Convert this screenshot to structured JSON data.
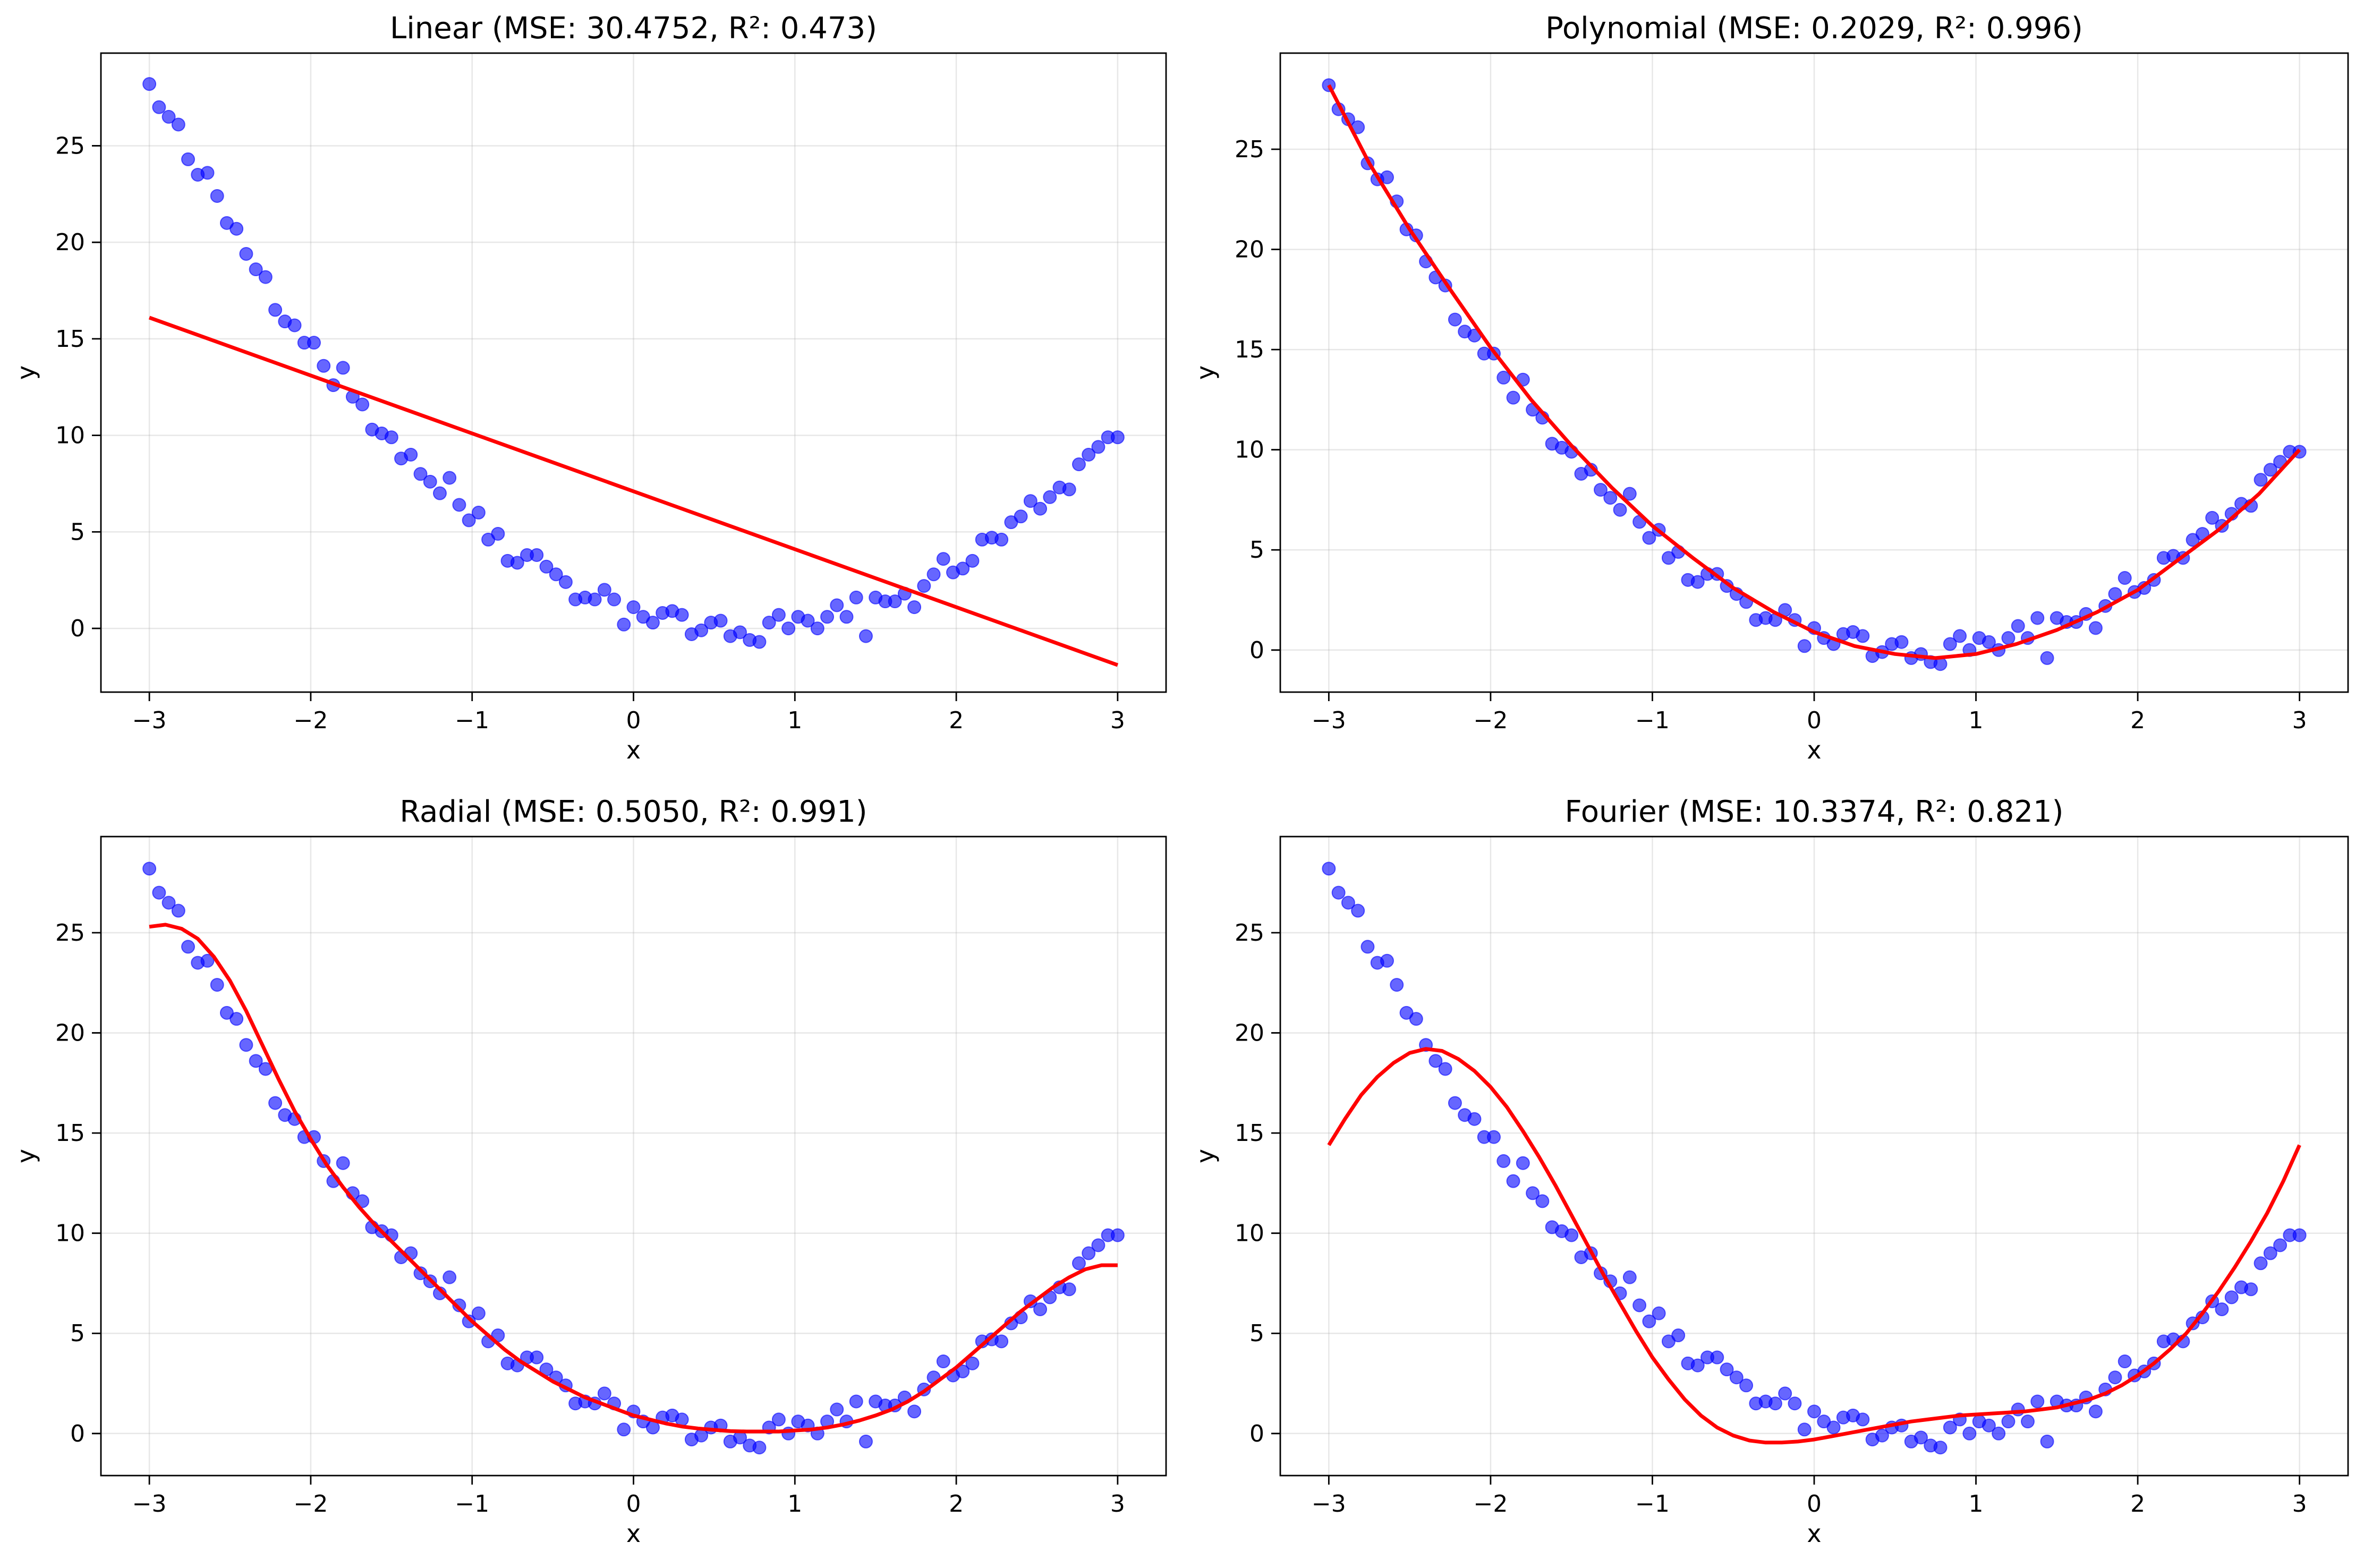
{
  "figure": {
    "layout": "2x2 grid"
  },
  "style": {
    "point_color": "#0000ff",
    "point_opacity": 0.6,
    "fit_color": "#ff0000",
    "grid_color": "#b0b0b0",
    "grid": true
  },
  "chart_data": [
    {
      "type": "scatter",
      "title": "Linear (MSE: 30.4752, R²: 0.473)",
      "xlabel": "x",
      "ylabel": "y",
      "xlim": [
        -3.3,
        3.3
      ],
      "ylim": [
        -3.3,
        29.8
      ],
      "xticks": [
        -3,
        -2,
        -1,
        0,
        1,
        2,
        3
      ],
      "xtick_labels": [
        "−3",
        "−2",
        "−1",
        "0",
        "1",
        "2",
        "3"
      ],
      "yticks": [
        0,
        5,
        10,
        15,
        20,
        25
      ],
      "ytick_labels": [
        "0",
        "5",
        "10",
        "15",
        "20",
        "25"
      ],
      "fit_line": {
        "x": [
          -3,
          3
        ],
        "y": [
          16.1,
          -1.9
        ]
      }
    },
    {
      "type": "scatter",
      "title": "Polynomial (MSE: 0.2029, R²: 0.996)",
      "xlabel": "x",
      "ylabel": "y",
      "xlim": [
        -3.3,
        3.3
      ],
      "ylim": [
        -2.1,
        29.8
      ],
      "xticks": [
        -3,
        -2,
        -1,
        0,
        1,
        2,
        3
      ],
      "xtick_labels": [
        "−3",
        "−2",
        "−1",
        "0",
        "1",
        "2",
        "3"
      ],
      "yticks": [
        0,
        5,
        10,
        15,
        20,
        25
      ],
      "ytick_labels": [
        "0",
        "5",
        "10",
        "15",
        "20",
        "25"
      ],
      "fit_line": {
        "x": [
          -3,
          -2.75,
          -2.5,
          -2.25,
          -2,
          -1.75,
          -1.5,
          -1.25,
          -1,
          -0.75,
          -0.5,
          -0.25,
          0,
          0.25,
          0.5,
          0.75,
          1,
          1.25,
          1.5,
          1.75,
          2,
          2.25,
          2.5,
          2.75,
          3
        ],
        "y": [
          28.2,
          24.3,
          21.0,
          18.0,
          15.1,
          12.5,
          10.2,
          8.1,
          6.2,
          4.6,
          3.1,
          1.9,
          0.9,
          0.2,
          -0.2,
          -0.4,
          -0.2,
          0.3,
          1.0,
          1.9,
          3.0,
          4.5,
          6.0,
          7.8,
          10.0
        ]
      }
    },
    {
      "type": "scatter",
      "title": "Radial (MSE: 0.5050, R²: 0.991)",
      "xlabel": "x",
      "ylabel": "y",
      "xlim": [
        -3.3,
        3.3
      ],
      "ylim": [
        -2.1,
        29.8
      ],
      "xticks": [
        -3,
        -2,
        -1,
        0,
        1,
        2,
        3
      ],
      "xtick_labels": [
        "−3",
        "−2",
        "−1",
        "0",
        "1",
        "2",
        "3"
      ],
      "yticks": [
        0,
        5,
        10,
        15,
        20,
        25
      ],
      "ytick_labels": [
        "0",
        "5",
        "10",
        "15",
        "20",
        "25"
      ],
      "fit_line": {
        "x": [
          -3,
          -2.9,
          -2.8,
          -2.7,
          -2.6,
          -2.5,
          -2.4,
          -2.3,
          -2.2,
          -2.1,
          -2,
          -1.9,
          -1.8,
          -1.7,
          -1.6,
          -1.5,
          -1.4,
          -1.3,
          -1.2,
          -1.1,
          -1,
          -0.9,
          -0.8,
          -0.7,
          -0.6,
          -0.5,
          -0.4,
          -0.3,
          -0.2,
          -0.1,
          0,
          0.1,
          0.2,
          0.3,
          0.4,
          0.5,
          0.6,
          0.7,
          0.8,
          0.9,
          1,
          1.1,
          1.2,
          1.3,
          1.4,
          1.5,
          1.6,
          1.7,
          1.8,
          1.9,
          2,
          2.1,
          2.2,
          2.3,
          2.4,
          2.5,
          2.6,
          2.7,
          2.8,
          2.9,
          3
        ],
        "y": [
          25.3,
          25.4,
          25.2,
          24.7,
          23.8,
          22.6,
          21.1,
          19.4,
          17.7,
          16.1,
          14.7,
          13.4,
          12.3,
          11.3,
          10.4,
          9.6,
          8.8,
          8.0,
          7.2,
          6.4,
          5.6,
          4.9,
          4.2,
          3.6,
          3.1,
          2.6,
          2.2,
          1.8,
          1.5,
          1.2,
          0.9,
          0.7,
          0.5,
          0.35,
          0.25,
          0.18,
          0.12,
          0.1,
          0.1,
          0.1,
          0.15,
          0.2,
          0.3,
          0.45,
          0.65,
          0.9,
          1.2,
          1.6,
          2.1,
          2.7,
          3.3,
          4.0,
          4.7,
          5.4,
          6.1,
          6.7,
          7.3,
          7.8,
          8.2,
          8.4,
          8.4
        ]
      }
    },
    {
      "type": "scatter",
      "title": "Fourier (MSE: 10.3374, R²: 0.821)",
      "xlabel": "x",
      "ylabel": "y",
      "xlim": [
        -3.3,
        3.3
      ],
      "ylim": [
        -2.1,
        29.8
      ],
      "xticks": [
        -3,
        -2,
        -1,
        0,
        1,
        2,
        3
      ],
      "xtick_labels": [
        "−3",
        "−2",
        "−1",
        "0",
        "1",
        "2",
        "3"
      ],
      "yticks": [
        0,
        5,
        10,
        15,
        20,
        25
      ],
      "ytick_labels": [
        "0",
        "5",
        "10",
        "15",
        "20",
        "25"
      ],
      "fit_line": {
        "x": [
          -3,
          -2.9,
          -2.8,
          -2.7,
          -2.6,
          -2.5,
          -2.4,
          -2.3,
          -2.2,
          -2.1,
          -2,
          -1.9,
          -1.8,
          -1.7,
          -1.6,
          -1.5,
          -1.4,
          -1.3,
          -1.2,
          -1.1,
          -1,
          -0.9,
          -0.8,
          -0.7,
          -0.6,
          -0.5,
          -0.4,
          -0.3,
          -0.2,
          -0.1,
          0,
          0.1,
          0.2,
          0.3,
          0.4,
          0.5,
          0.6,
          0.7,
          0.8,
          0.9,
          1,
          1.1,
          1.2,
          1.3,
          1.4,
          1.5,
          1.6,
          1.7,
          1.8,
          1.9,
          2,
          2.1,
          2.2,
          2.3,
          2.4,
          2.5,
          2.6,
          2.7,
          2.8,
          2.9,
          3
        ],
        "y": [
          14.4,
          15.7,
          16.9,
          17.8,
          18.5,
          19.0,
          19.2,
          19.1,
          18.7,
          18.1,
          17.3,
          16.3,
          15.1,
          13.8,
          12.4,
          10.9,
          9.4,
          7.9,
          6.5,
          5.1,
          3.8,
          2.7,
          1.7,
          0.9,
          0.3,
          -0.1,
          -0.35,
          -0.45,
          -0.45,
          -0.4,
          -0.3,
          -0.15,
          0.0,
          0.15,
          0.3,
          0.45,
          0.6,
          0.7,
          0.8,
          0.9,
          0.95,
          1.0,
          1.05,
          1.1,
          1.2,
          1.3,
          1.5,
          1.7,
          2.0,
          2.4,
          2.9,
          3.5,
          4.2,
          5.0,
          6.0,
          7.1,
          8.3,
          9.6,
          11.0,
          12.6,
          14.4
        ]
      }
    }
  ],
  "scatter_points": {
    "x": [
      -3,
      -2.94,
      -2.88,
      -2.82,
      -2.76,
      -2.7,
      -2.64,
      -2.58,
      -2.52,
      -2.46,
      -2.4,
      -2.34,
      -2.28,
      -2.22,
      -2.16,
      -2.1,
      -2.04,
      -1.98,
      -1.92,
      -1.86,
      -1.8,
      -1.74,
      -1.68,
      -1.62,
      -1.56,
      -1.5,
      -1.44,
      -1.38,
      -1.32,
      -1.26,
      -1.2,
      -1.14,
      -1.08,
      -1.02,
      -0.96,
      -0.9,
      -0.84,
      -0.78,
      -0.72,
      -0.66,
      -0.6,
      -0.54,
      -0.48,
      -0.42,
      -0.36,
      -0.3,
      -0.24,
      -0.18,
      -0.12,
      -0.06,
      0,
      0.06,
      0.12,
      0.18,
      0.24,
      0.3,
      0.36,
      0.42,
      0.48,
      0.54,
      0.6,
      0.66,
      0.72,
      0.78,
      0.84,
      0.9,
      0.96,
      1.02,
      1.08,
      1.14,
      1.2,
      1.26,
      1.32,
      1.38,
      1.44,
      1.5,
      1.56,
      1.62,
      1.68,
      1.74,
      1.8,
      1.86,
      1.92,
      1.98,
      2.04,
      2.1,
      2.16,
      2.22,
      2.28,
      2.34,
      2.4,
      2.46,
      2.52,
      2.58,
      2.64,
      2.7,
      2.76,
      2.82,
      2.88,
      2.94,
      3
    ],
    "y": [
      28.2,
      27.0,
      26.5,
      26.1,
      24.3,
      23.5,
      23.6,
      22.4,
      21.0,
      20.7,
      19.4,
      18.6,
      18.2,
      16.5,
      15.9,
      15.7,
      14.8,
      14.8,
      13.6,
      12.6,
      13.5,
      12.0,
      11.6,
      10.3,
      10.1,
      9.9,
      8.8,
      9.0,
      8.0,
      7.6,
      7.0,
      7.8,
      6.4,
      5.6,
      6.0,
      4.6,
      4.9,
      3.5,
      3.4,
      3.8,
      3.8,
      3.2,
      2.8,
      2.4,
      1.5,
      1.6,
      1.5,
      2.0,
      1.5,
      0.2,
      1.1,
      0.6,
      0.3,
      0.8,
      0.9,
      0.7,
      -0.3,
      -0.1,
      0.3,
      0.4,
      -0.4,
      -0.2,
      -0.6,
      -0.7,
      0.3,
      0.7,
      0.0,
      0.6,
      0.4,
      0.0,
      0.6,
      1.2,
      0.6,
      1.6,
      -0.4,
      1.6,
      1.4,
      1.4,
      1.8,
      1.1,
      2.2,
      2.8,
      3.6,
      2.9,
      3.1,
      3.5,
      4.6,
      4.7,
      4.6,
      5.5,
      5.8,
      6.6,
      6.2,
      6.8,
      7.3,
      7.2,
      8.5,
      9.0,
      9.4,
      9.9,
      9.9
    ]
  }
}
